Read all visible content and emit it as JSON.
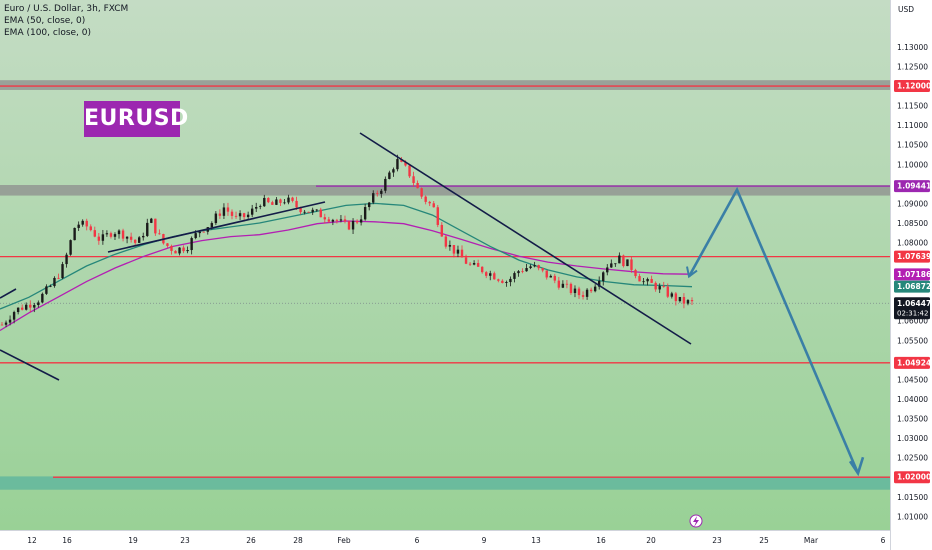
{
  "legend": {
    "symbol": "Euro / U.S. Dollar, 3h, FXCM",
    "ema50": "EMA (50, close, 0)",
    "ema100": "EMA (100, close, 0)"
  },
  "watermark": "EURUSD",
  "currency": "USD",
  "colors": {
    "bg_top": "#c4dcc4",
    "bg_bottom": "#99d196",
    "ema50": "#26877a",
    "ema100": "#b31fb3",
    "level_red": "#f23645",
    "level_purple": "#9c27b0",
    "zone_gray": "#8e8e8e",
    "zone_teal": "#5bb39d",
    "trendline": "#131c48",
    "projection": "#3a7fa6",
    "up_candle": "#1a1a1a",
    "down_candle": "#f23645"
  },
  "chart_data": {
    "type": "candlestick",
    "symbol": "EURUSD",
    "timeframe": "3h",
    "ylim": [
      1.0065,
      1.142
    ],
    "x_ticks": [
      "12",
      "16",
      "19",
      "23",
      "26",
      "28",
      "Feb",
      "6",
      "9",
      "13",
      "16",
      "20",
      "23",
      "25",
      "Mar",
      "6"
    ],
    "y_ticks": [
      "1.13000",
      "1.12500",
      "1.11500",
      "1.11000",
      "1.10500",
      "1.10000",
      "1.09000",
      "1.08500",
      "1.08000",
      "1.06000",
      "1.05500",
      "1.04500",
      "1.04000",
      "1.03500",
      "1.03000",
      "1.02500",
      "1.01500",
      "1.01000"
    ],
    "price_labels": [
      {
        "price": 1.12,
        "text": "1.12000",
        "kind": "resistance"
      },
      {
        "price": 1.09441,
        "text": "1.09441",
        "kind": "resistance"
      },
      {
        "price": 1.07639,
        "text": "1.07639",
        "kind": "level"
      },
      {
        "price": 1.07186,
        "text": "1.07186",
        "kind": "ema100"
      },
      {
        "price": 1.06872,
        "text": "1.06872",
        "kind": "ema50"
      },
      {
        "price": 1.06447,
        "text": "1.06447",
        "kind": "last",
        "countdown": "02:31:42"
      },
      {
        "price": 1.04924,
        "text": "1.04924",
        "kind": "support"
      },
      {
        "price": 1.02,
        "text": "1.02000",
        "kind": "support"
      }
    ],
    "zones": [
      {
        "from": 1.119,
        "to": 1.1215,
        "color": "gray"
      },
      {
        "from": 1.092,
        "to": 1.0947,
        "color": "gray"
      },
      {
        "from": 1.0168,
        "to": 1.0202,
        "color": "teal"
      }
    ],
    "candles_close_path": [
      1.059,
      1.0625,
      1.064,
      1.0655,
      1.069,
      1.074,
      1.085,
      1.084,
      1.0805,
      1.083,
      1.082,
      1.0795,
      1.086,
      1.08,
      1.078,
      1.079,
      1.083,
      1.085,
      1.089,
      1.086,
      1.087,
      1.0905,
      1.0895,
      1.091,
      1.089,
      1.088,
      1.087,
      1.086,
      1.084,
      1.086,
      1.091,
      1.095,
      1.101,
      1.098,
      1.092,
      1.089,
      1.08,
      1.077,
      1.074,
      1.073,
      1.0715,
      1.07,
      1.073,
      1.074,
      1.072,
      1.07,
      1.068,
      1.0665,
      1.069,
      1.074,
      1.076,
      1.074,
      1.07,
      1.069,
      1.067,
      1.065,
      1.0645
    ],
    "ema50": [
      1.063,
      1.066,
      1.07,
      1.074,
      1.077,
      1.0795,
      1.0815,
      1.083,
      1.084,
      1.085,
      1.0865,
      1.088,
      1.0895,
      1.09,
      1.0895,
      1.087,
      1.083,
      1.079,
      1.0755,
      1.073,
      1.0712,
      1.07,
      1.0692,
      1.069,
      1.0687
    ],
    "ema100": [
      1.0575,
      1.062,
      1.066,
      1.07,
      1.0735,
      1.0765,
      1.079,
      1.0805,
      1.0815,
      1.082,
      1.0832,
      1.0848,
      1.0855,
      1.0853,
      1.0848,
      1.083,
      1.0808,
      1.0785,
      1.0765,
      1.075,
      1.074,
      1.0732,
      1.0725,
      1.072,
      1.0719
    ],
    "projection": [
      1.0713,
      1.0935,
      1.021
    ]
  }
}
